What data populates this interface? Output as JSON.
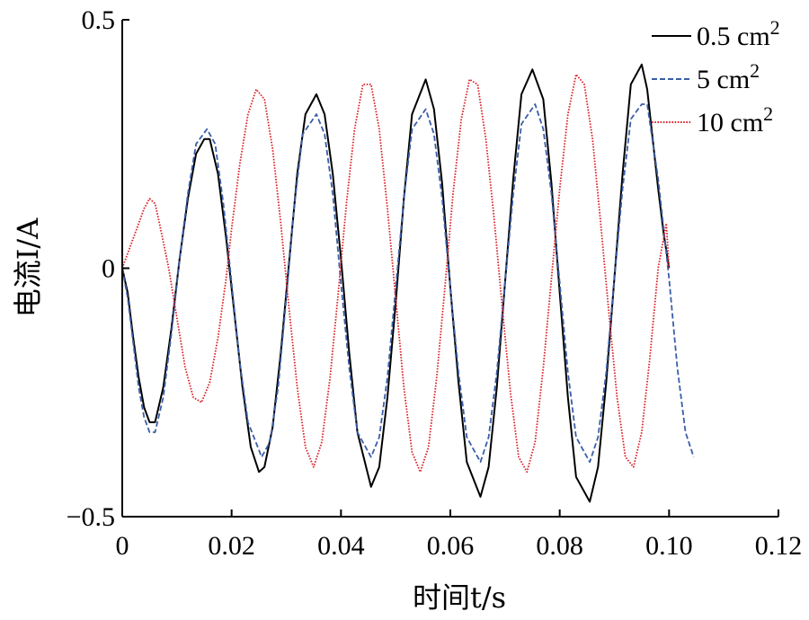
{
  "chart_data": {
    "type": "line",
    "xlabel": "时间t/s",
    "ylabel": "电流I/A",
    "xlim": [
      0,
      0.12
    ],
    "ylim": [
      -0.5,
      0.5
    ],
    "xticks": [
      0,
      0.02,
      0.04,
      0.06,
      0.08,
      0.1,
      0.12
    ],
    "xtick_labels": [
      "0",
      "0.02",
      "0.04",
      "0.06",
      "0.08",
      "0.10",
      "0.12"
    ],
    "yticks": [
      -0.5,
      0,
      0.5
    ],
    "ytick_labels": [
      "−0.5",
      "0",
      "0.5"
    ],
    "legend_position": "top-right",
    "grid": false,
    "series": [
      {
        "name": "0.5 cm2",
        "color": "#000000",
        "line_style": "solid",
        "x": [
          0,
          0.001,
          0.002,
          0.003,
          0.004,
          0.005,
          0.006,
          0.0075,
          0.009,
          0.0105,
          0.012,
          0.0135,
          0.015,
          0.016,
          0.0175,
          0.019,
          0.0205,
          0.022,
          0.0235,
          0.025,
          0.026,
          0.0275,
          0.029,
          0.0305,
          0.032,
          0.0335,
          0.0355,
          0.037,
          0.0385,
          0.04,
          0.0415,
          0.043,
          0.0455,
          0.047,
          0.0485,
          0.05,
          0.0515,
          0.053,
          0.0555,
          0.057,
          0.0585,
          0.06,
          0.0615,
          0.063,
          0.0655,
          0.067,
          0.0685,
          0.07,
          0.0715,
          0.073,
          0.075,
          0.077,
          0.0785,
          0.08,
          0.0815,
          0.083,
          0.0855,
          0.087,
          0.0885,
          0.09,
          0.0915,
          0.093,
          0.095,
          0.096,
          0.097,
          0.098,
          0.099,
          0.1
        ],
        "y": [
          0,
          -0.05,
          -0.14,
          -0.22,
          -0.28,
          -0.31,
          -0.31,
          -0.24,
          -0.12,
          0.02,
          0.14,
          0.23,
          0.26,
          0.26,
          0.19,
          0.06,
          -0.09,
          -0.24,
          -0.36,
          -0.41,
          -0.4,
          -0.32,
          -0.17,
          0.01,
          0.19,
          0.31,
          0.35,
          0.31,
          0.19,
          0.02,
          -0.17,
          -0.33,
          -0.44,
          -0.4,
          -0.26,
          -0.07,
          0.14,
          0.31,
          0.38,
          0.32,
          0.17,
          -0.04,
          -0.23,
          -0.39,
          -0.46,
          -0.4,
          -0.24,
          -0.03,
          0.18,
          0.35,
          0.4,
          0.34,
          0.17,
          -0.05,
          -0.26,
          -0.42,
          -0.47,
          -0.4,
          -0.23,
          -0.02,
          0.19,
          0.37,
          0.41,
          0.36,
          0.26,
          0.16,
          0.07,
          0
        ]
      },
      {
        "name": "5 cm2",
        "color": "#3a5ea8",
        "line_style": "dashed",
        "x": [
          0,
          0.001,
          0.002,
          0.003,
          0.004,
          0.005,
          0.006,
          0.0075,
          0.009,
          0.0105,
          0.012,
          0.0135,
          0.0155,
          0.017,
          0.0185,
          0.02,
          0.0215,
          0.023,
          0.0255,
          0.027,
          0.0285,
          0.03,
          0.0315,
          0.033,
          0.0355,
          0.037,
          0.0385,
          0.04,
          0.0415,
          0.043,
          0.0455,
          0.047,
          0.0485,
          0.05,
          0.0515,
          0.053,
          0.0555,
          0.057,
          0.0585,
          0.06,
          0.0615,
          0.063,
          0.0655,
          0.067,
          0.0685,
          0.07,
          0.0715,
          0.073,
          0.0755,
          0.077,
          0.0785,
          0.08,
          0.0815,
          0.083,
          0.0855,
          0.087,
          0.0885,
          0.09,
          0.0915,
          0.093,
          0.095,
          0.096,
          0.098,
          0.1,
          0.1015,
          0.103,
          0.1045
        ],
        "y": [
          0,
          -0.06,
          -0.15,
          -0.24,
          -0.3,
          -0.33,
          -0.33,
          -0.26,
          -0.13,
          0.02,
          0.15,
          0.25,
          0.28,
          0.25,
          0.13,
          -0.03,
          -0.19,
          -0.31,
          -0.38,
          -0.35,
          -0.24,
          -0.06,
          0.13,
          0.27,
          0.31,
          0.27,
          0.15,
          -0.03,
          -0.2,
          -0.33,
          -0.38,
          -0.34,
          -0.22,
          -0.04,
          0.14,
          0.28,
          0.32,
          0.27,
          0.14,
          -0.04,
          -0.21,
          -0.34,
          -0.39,
          -0.34,
          -0.21,
          -0.03,
          0.15,
          0.29,
          0.33,
          0.28,
          0.15,
          -0.03,
          -0.21,
          -0.34,
          -0.39,
          -0.34,
          -0.21,
          -0.02,
          0.16,
          0.3,
          0.33,
          0.33,
          0.18,
          -0.02,
          -0.2,
          -0.33,
          -0.38
        ]
      },
      {
        "name": "10 cm2",
        "color": "#d8232a",
        "line_style": "dotted",
        "x": [
          0,
          0.001,
          0.002,
          0.003,
          0.004,
          0.005,
          0.006,
          0.007,
          0.0085,
          0.01,
          0.0115,
          0.013,
          0.0145,
          0.016,
          0.0175,
          0.019,
          0.02,
          0.0215,
          0.023,
          0.0245,
          0.026,
          0.0275,
          0.029,
          0.0305,
          0.032,
          0.0335,
          0.035,
          0.0365,
          0.038,
          0.0395,
          0.041,
          0.0425,
          0.044,
          0.0455,
          0.047,
          0.0485,
          0.05,
          0.0515,
          0.053,
          0.0545,
          0.056,
          0.0575,
          0.059,
          0.0605,
          0.062,
          0.0635,
          0.065,
          0.0665,
          0.068,
          0.0695,
          0.071,
          0.0725,
          0.074,
          0.0755,
          0.077,
          0.0785,
          0.08,
          0.0815,
          0.083,
          0.0845,
          0.086,
          0.0875,
          0.089,
          0.0905,
          0.092,
          0.0935,
          0.095,
          0.0965,
          0.098,
          0.0995,
          0.1
        ],
        "y": [
          0,
          0.03,
          0.06,
          0.09,
          0.12,
          0.14,
          0.13,
          0.08,
          0.0,
          -0.1,
          -0.2,
          -0.26,
          -0.27,
          -0.23,
          -0.14,
          -0.02,
          0.08,
          0.21,
          0.31,
          0.36,
          0.34,
          0.24,
          0.09,
          -0.08,
          -0.24,
          -0.36,
          -0.4,
          -0.35,
          -0.22,
          -0.05,
          0.13,
          0.28,
          0.37,
          0.37,
          0.28,
          0.12,
          -0.06,
          -0.24,
          -0.37,
          -0.41,
          -0.36,
          -0.22,
          -0.04,
          0.15,
          0.3,
          0.38,
          0.37,
          0.26,
          0.1,
          -0.08,
          -0.25,
          -0.38,
          -0.41,
          -0.35,
          -0.2,
          -0.02,
          0.16,
          0.31,
          0.39,
          0.37,
          0.26,
          0.09,
          -0.09,
          -0.26,
          -0.38,
          -0.4,
          -0.33,
          -0.18,
          0.0,
          0.09,
          0.0
        ]
      }
    ]
  }
}
